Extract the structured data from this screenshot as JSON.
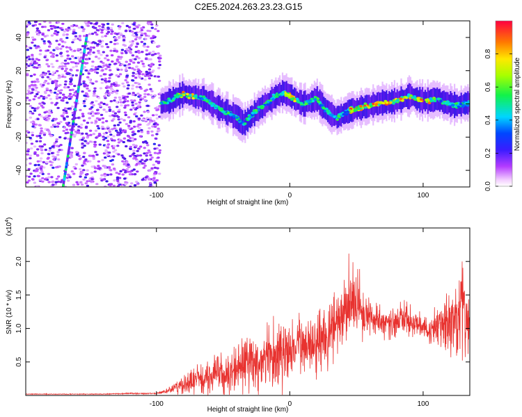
{
  "figure": {
    "title": "C2E5.2024.263.23.23.G15"
  },
  "chart_data": [
    {
      "type": "heatmap",
      "title": "C2E5.2024.263.23.23.G15",
      "xlabel": "Height of straight line (km)",
      "ylabel": "Frequency (Hz)",
      "xlim": [
        -198,
        135
      ],
      "ylim": [
        -50,
        50
      ],
      "x_ticks": [
        -100,
        0,
        100
      ],
      "x_tick_labels": [
        "-100",
        "0",
        "100"
      ],
      "y_ticks": [
        -40,
        -20,
        0,
        20,
        40
      ],
      "y_tick_labels": [
        "-40",
        "-20",
        "0",
        "20",
        "40"
      ],
      "colorbar": {
        "label": "Normalized spectral amplitude",
        "range": [
          0,
          1
        ],
        "ticks": [
          0.0,
          0.2,
          0.4,
          0.6,
          0.8
        ],
        "tick_labels": [
          "0.0",
          "0.2",
          "0.4",
          "0.6",
          "0.8"
        ],
        "colormap": "rainbow (white to magenta to blue to cyan to green to yellow to red)"
      },
      "noise_region_x": [
        -198,
        -97
      ],
      "ridge": {
        "x": [
          -97,
          -90,
          -85,
          -80,
          -75,
          -70,
          -65,
          -60,
          -55,
          -50,
          -45,
          -40,
          -35,
          -30,
          -25,
          -20,
          -15,
          -10,
          -5,
          0,
          5,
          10,
          15,
          20,
          25,
          30,
          35,
          40,
          45,
          50,
          55,
          60,
          65,
          70,
          75,
          80,
          85,
          90,
          95,
          100,
          105,
          110,
          115,
          120,
          125,
          130,
          135
        ],
        "y": [
          0,
          2,
          4,
          6,
          5,
          4,
          3,
          1,
          -2,
          -4,
          -6,
          -8,
          -12,
          -8,
          -4,
          -1,
          2,
          5,
          7,
          5,
          2,
          0,
          1,
          3,
          -2,
          -6,
          -8,
          -6,
          -4,
          -3,
          -2,
          -1,
          0,
          1,
          1,
          2,
          3,
          5,
          3,
          2,
          2,
          3,
          1,
          0,
          -1,
          0,
          1
        ]
      },
      "streak": {
        "x": [
          -170,
          -152
        ],
        "y": [
          -50,
          42
        ]
      }
    },
    {
      "type": "line",
      "xlabel": "Height of straight line (km)",
      "ylabel": "SNR (10 * v/v)",
      "y_multiplier_label": "(x10",
      "y_multiplier_exponent": "4",
      "xlim": [
        -198,
        135
      ],
      "ylim": [
        0,
        2.5
      ],
      "x_ticks": [
        -100,
        0,
        100
      ],
      "x_tick_labels": [
        "-100",
        "0",
        "100"
      ],
      "y_ticks": [
        0.5,
        1.0,
        1.5,
        2.0
      ],
      "y_tick_labels": [
        "0.5",
        "1.0",
        "1.5",
        "2.0"
      ],
      "series": [
        {
          "color": "#e8322f",
          "x": [
            -198,
            -180,
            -160,
            -140,
            -120,
            -100,
            -95,
            -90,
            -85,
            -80,
            -75,
            -70,
            -65,
            -60,
            -55,
            -50,
            -45,
            -40,
            -35,
            -30,
            -25,
            -20,
            -15,
            -10,
            -5,
            0,
            5,
            10,
            15,
            20,
            25,
            30,
            35,
            40,
            45,
            50,
            55,
            60,
            65,
            70,
            75,
            80,
            85,
            90,
            95,
            100,
            105,
            110,
            115,
            120,
            125,
            130,
            135
          ],
          "y": [
            0.02,
            0.02,
            0.02,
            0.02,
            0.03,
            0.03,
            0.05,
            0.08,
            0.12,
            0.15,
            0.18,
            0.25,
            0.22,
            0.3,
            0.35,
            0.3,
            0.32,
            0.38,
            0.45,
            0.5,
            0.45,
            0.52,
            0.55,
            0.6,
            0.62,
            0.68,
            0.7,
            0.75,
            0.8,
            0.85,
            0.9,
            0.95,
            1.05,
            1.2,
            1.35,
            1.4,
            1.3,
            1.2,
            1.15,
            1.1,
            1.05,
            1.1,
            1.15,
            1.12,
            1.05,
            1.0,
            0.95,
            1.0,
            1.05,
            1.15,
            1.2,
            1.25,
            1.1
          ],
          "envelope": [
            0.01,
            0.01,
            0.01,
            0.01,
            0.02,
            0.02,
            0.05,
            0.1,
            0.18,
            0.25,
            0.3,
            0.4,
            0.38,
            0.5,
            0.55,
            0.5,
            0.55,
            0.6,
            0.7,
            0.75,
            0.7,
            0.8,
            0.8,
            0.85,
            0.9,
            0.9,
            0.85,
            0.85,
            0.8,
            0.85,
            0.85,
            0.9,
            1.0,
            1.05,
            1.1,
            1.05,
            0.85,
            0.65,
            0.5,
            0.4,
            0.4,
            0.45,
            0.5,
            0.45,
            0.4,
            0.35,
            0.4,
            0.6,
            0.8,
            1.0,
            1.2,
            1.25,
            1.0
          ]
        }
      ]
    }
  ]
}
